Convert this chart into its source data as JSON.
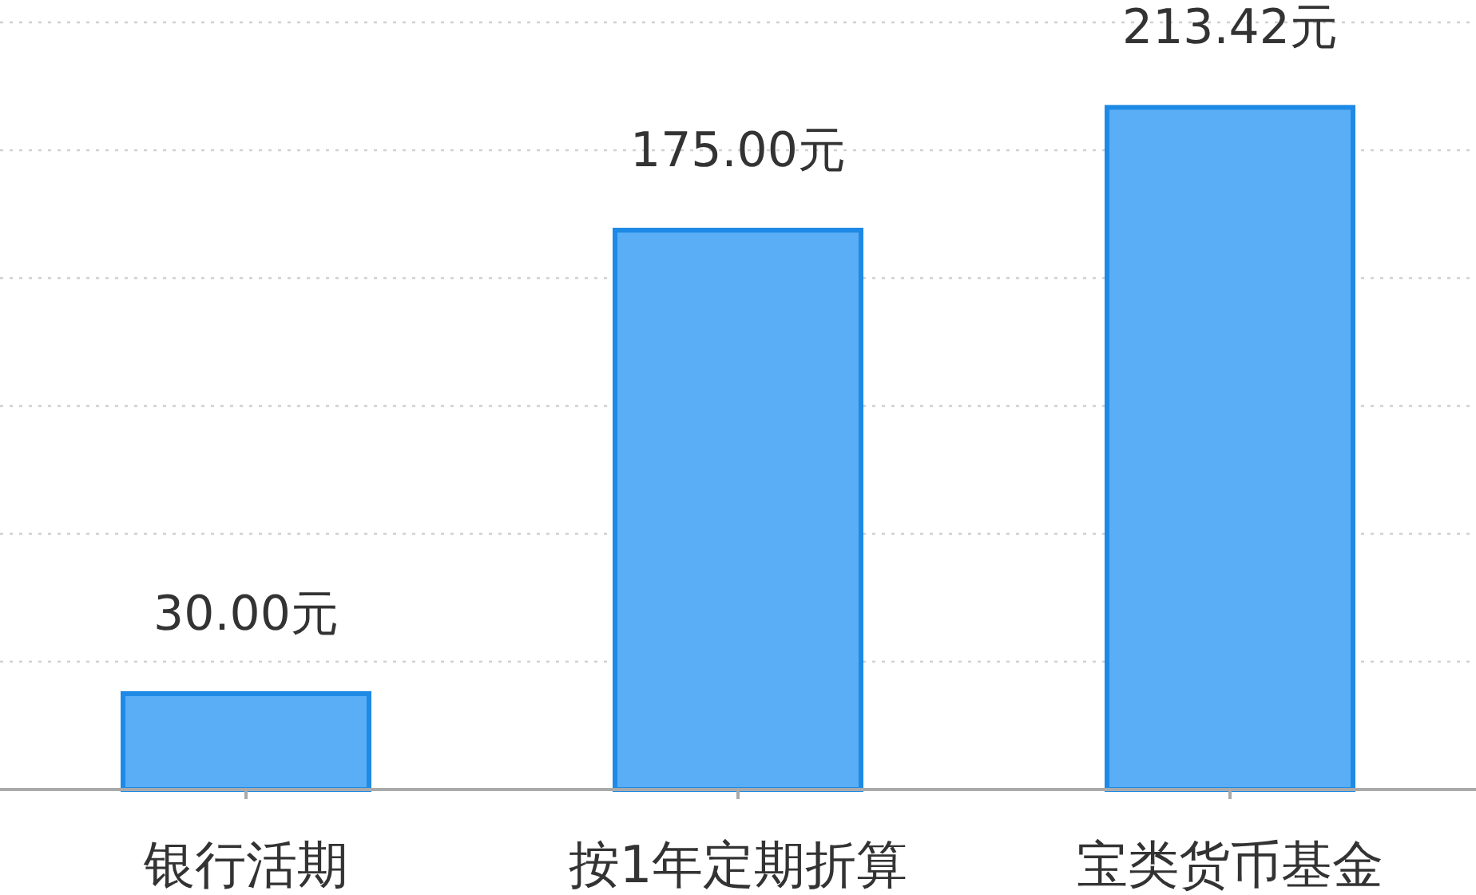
{
  "chart_data": {
    "type": "bar",
    "categories": [
      "银行活期",
      "按1年定期折算",
      "宝类货币基金"
    ],
    "values": [
      30,
      175,
      213.42
    ],
    "value_labels": [
      "30.00元",
      "175.00元",
      "213.42元"
    ],
    "color": "#5aaef5",
    "ylim": [
      0,
      240
    ],
    "yticks": [
      {
        "value": 40,
        "label": null
      },
      {
        "value": 80,
        "label": null
      },
      {
        "value": 120,
        "label": null
      },
      {
        "value": 160,
        "label": null
      },
      {
        "value": 200,
        "label": null
      },
      {
        "value": 240,
        "label": null
      }
    ],
    "grid": "y",
    "tick_labels": "x"
  }
}
